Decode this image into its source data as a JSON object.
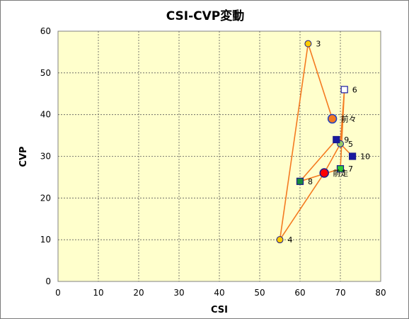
{
  "chart_data": {
    "type": "scatter",
    "title": "CSI-CVP変動",
    "xlabel": "CSI",
    "ylabel": "CVP",
    "xlim": [
      0,
      80
    ],
    "ylim": [
      0,
      60
    ],
    "x_ticks": [
      "0",
      "10",
      "20",
      "30",
      "40",
      "50",
      "60",
      "70",
      "80"
    ],
    "y_ticks": [
      "0",
      "10",
      "20",
      "30",
      "40",
      "50",
      "60"
    ],
    "grid": true,
    "background": "#ffffcc",
    "line_color": "#f47a20",
    "path_order": [
      "前々",
      "3",
      "4",
      "前走",
      "5",
      "6",
      "7",
      "8",
      "9",
      "10"
    ],
    "points": [
      {
        "label": "前々",
        "x": 68,
        "y": 39,
        "marker": "circle-large",
        "fill": "#f47a20",
        "stroke": "#2040c0"
      },
      {
        "label": "3",
        "x": 62,
        "y": 57,
        "marker": "circle",
        "fill": "#ffcc00",
        "stroke": "#1a1a8c"
      },
      {
        "label": "4",
        "x": 55,
        "y": 10,
        "marker": "circle",
        "fill": "#ffcc00",
        "stroke": "#1a1a8c"
      },
      {
        "label": "前走",
        "x": 66,
        "y": 26,
        "marker": "circle-large",
        "fill": "#ff0000",
        "stroke": "#1a1a8c"
      },
      {
        "label": "5",
        "x": 70,
        "y": 33,
        "marker": "circle",
        "fill": "#99cc66",
        "stroke": "#1a1a8c"
      },
      {
        "label": "6",
        "x": 71,
        "y": 46,
        "marker": "square-open",
        "fill": "#ffffff",
        "stroke": "#1a1aa0"
      },
      {
        "label": "7",
        "x": 70,
        "y": 27,
        "marker": "square",
        "fill": "#33cc33",
        "stroke": "#1a1a8c"
      },
      {
        "label": "8",
        "x": 60,
        "y": 24,
        "marker": "square",
        "fill": "#1a8c3a",
        "stroke": "#1a1a8c"
      },
      {
        "label": "9",
        "x": 69,
        "y": 34,
        "marker": "square",
        "fill": "#1a1aa0",
        "stroke": "#1a1a8c"
      },
      {
        "label": "10",
        "x": 73,
        "y": 30,
        "marker": "square",
        "fill": "#1a1aa0",
        "stroke": "#1a1a8c"
      }
    ]
  }
}
